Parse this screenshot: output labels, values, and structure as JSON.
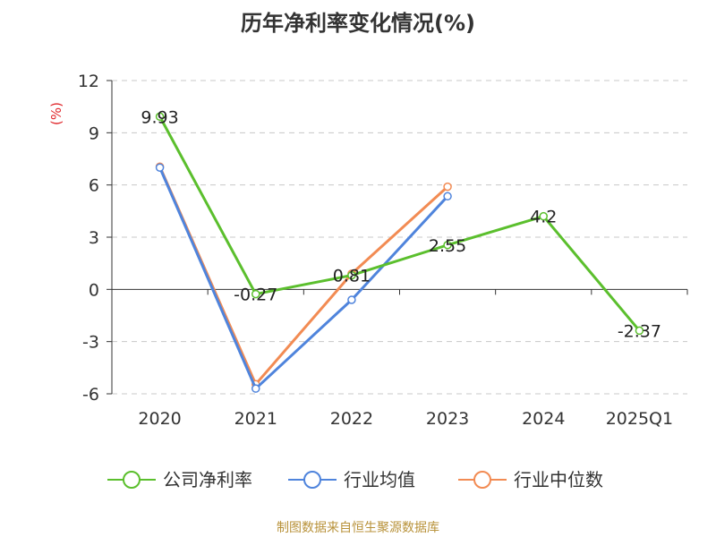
{
  "title": "历年净利率变化情况(%)",
  "source": "制图数据来自恒生聚源数据库",
  "chart_data": {
    "type": "line",
    "title": "历年净利率变化情况(%)",
    "ylabel": "(%)",
    "xlabel": "",
    "categories": [
      "2020",
      "2021",
      "2022",
      "2023",
      "2024",
      "2025Q1"
    ],
    "ylim": [
      -6,
      12
    ],
    "yticks": [
      12,
      9,
      6,
      3,
      0,
      -3,
      -6
    ],
    "grid": true,
    "legend_position": "bottom",
    "series": [
      {
        "name": "公司净利率",
        "color": "#5bbf2d",
        "values": [
          9.93,
          -0.27,
          0.81,
          2.55,
          4.2,
          -2.37
        ],
        "labels": [
          "9.93",
          "-0.27",
          "0.81",
          "2.55",
          "4.2",
          "-2.37"
        ]
      },
      {
        "name": "行业均值",
        "color": "#4f84dc",
        "values": [
          7.0,
          -5.7,
          -0.6,
          5.35,
          null,
          null
        ]
      },
      {
        "name": "行业中位数",
        "color": "#f28b53",
        "values": [
          7.05,
          -5.45,
          0.9,
          5.9,
          null,
          null
        ]
      }
    ]
  }
}
